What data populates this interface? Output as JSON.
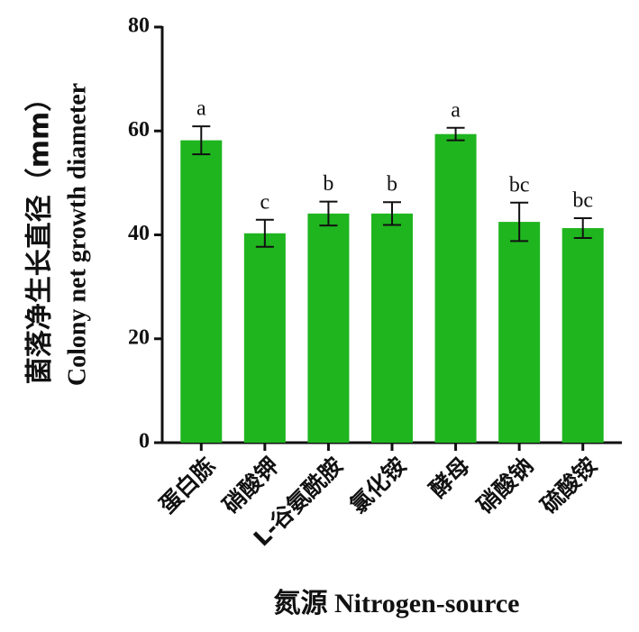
{
  "chart_data": {
    "type": "bar",
    "y_label_lines": [
      "菌落净生长直径（mm）",
      "Colony net growth diameter"
    ],
    "x_label": "氮源 Nitrogen-source",
    "categories": [
      "蛋白胨",
      "硝酸钾",
      "L-谷氨酰胺",
      "氯化铵",
      "酵母",
      "硝酸钠",
      "硫酸铵"
    ],
    "values": [
      58.2,
      40.3,
      44.1,
      44.1,
      59.4,
      42.5,
      41.3
    ],
    "errors": [
      2.7,
      2.6,
      2.3,
      2.2,
      1.2,
      3.7,
      1.9
    ],
    "significance": [
      "a",
      "c",
      "b",
      "b",
      "a",
      "bc",
      "bc"
    ],
    "color": "#1fb51f",
    "ylim": [
      0,
      80
    ],
    "yticks": [
      0,
      20,
      40,
      60,
      80
    ],
    "grid": false
  }
}
